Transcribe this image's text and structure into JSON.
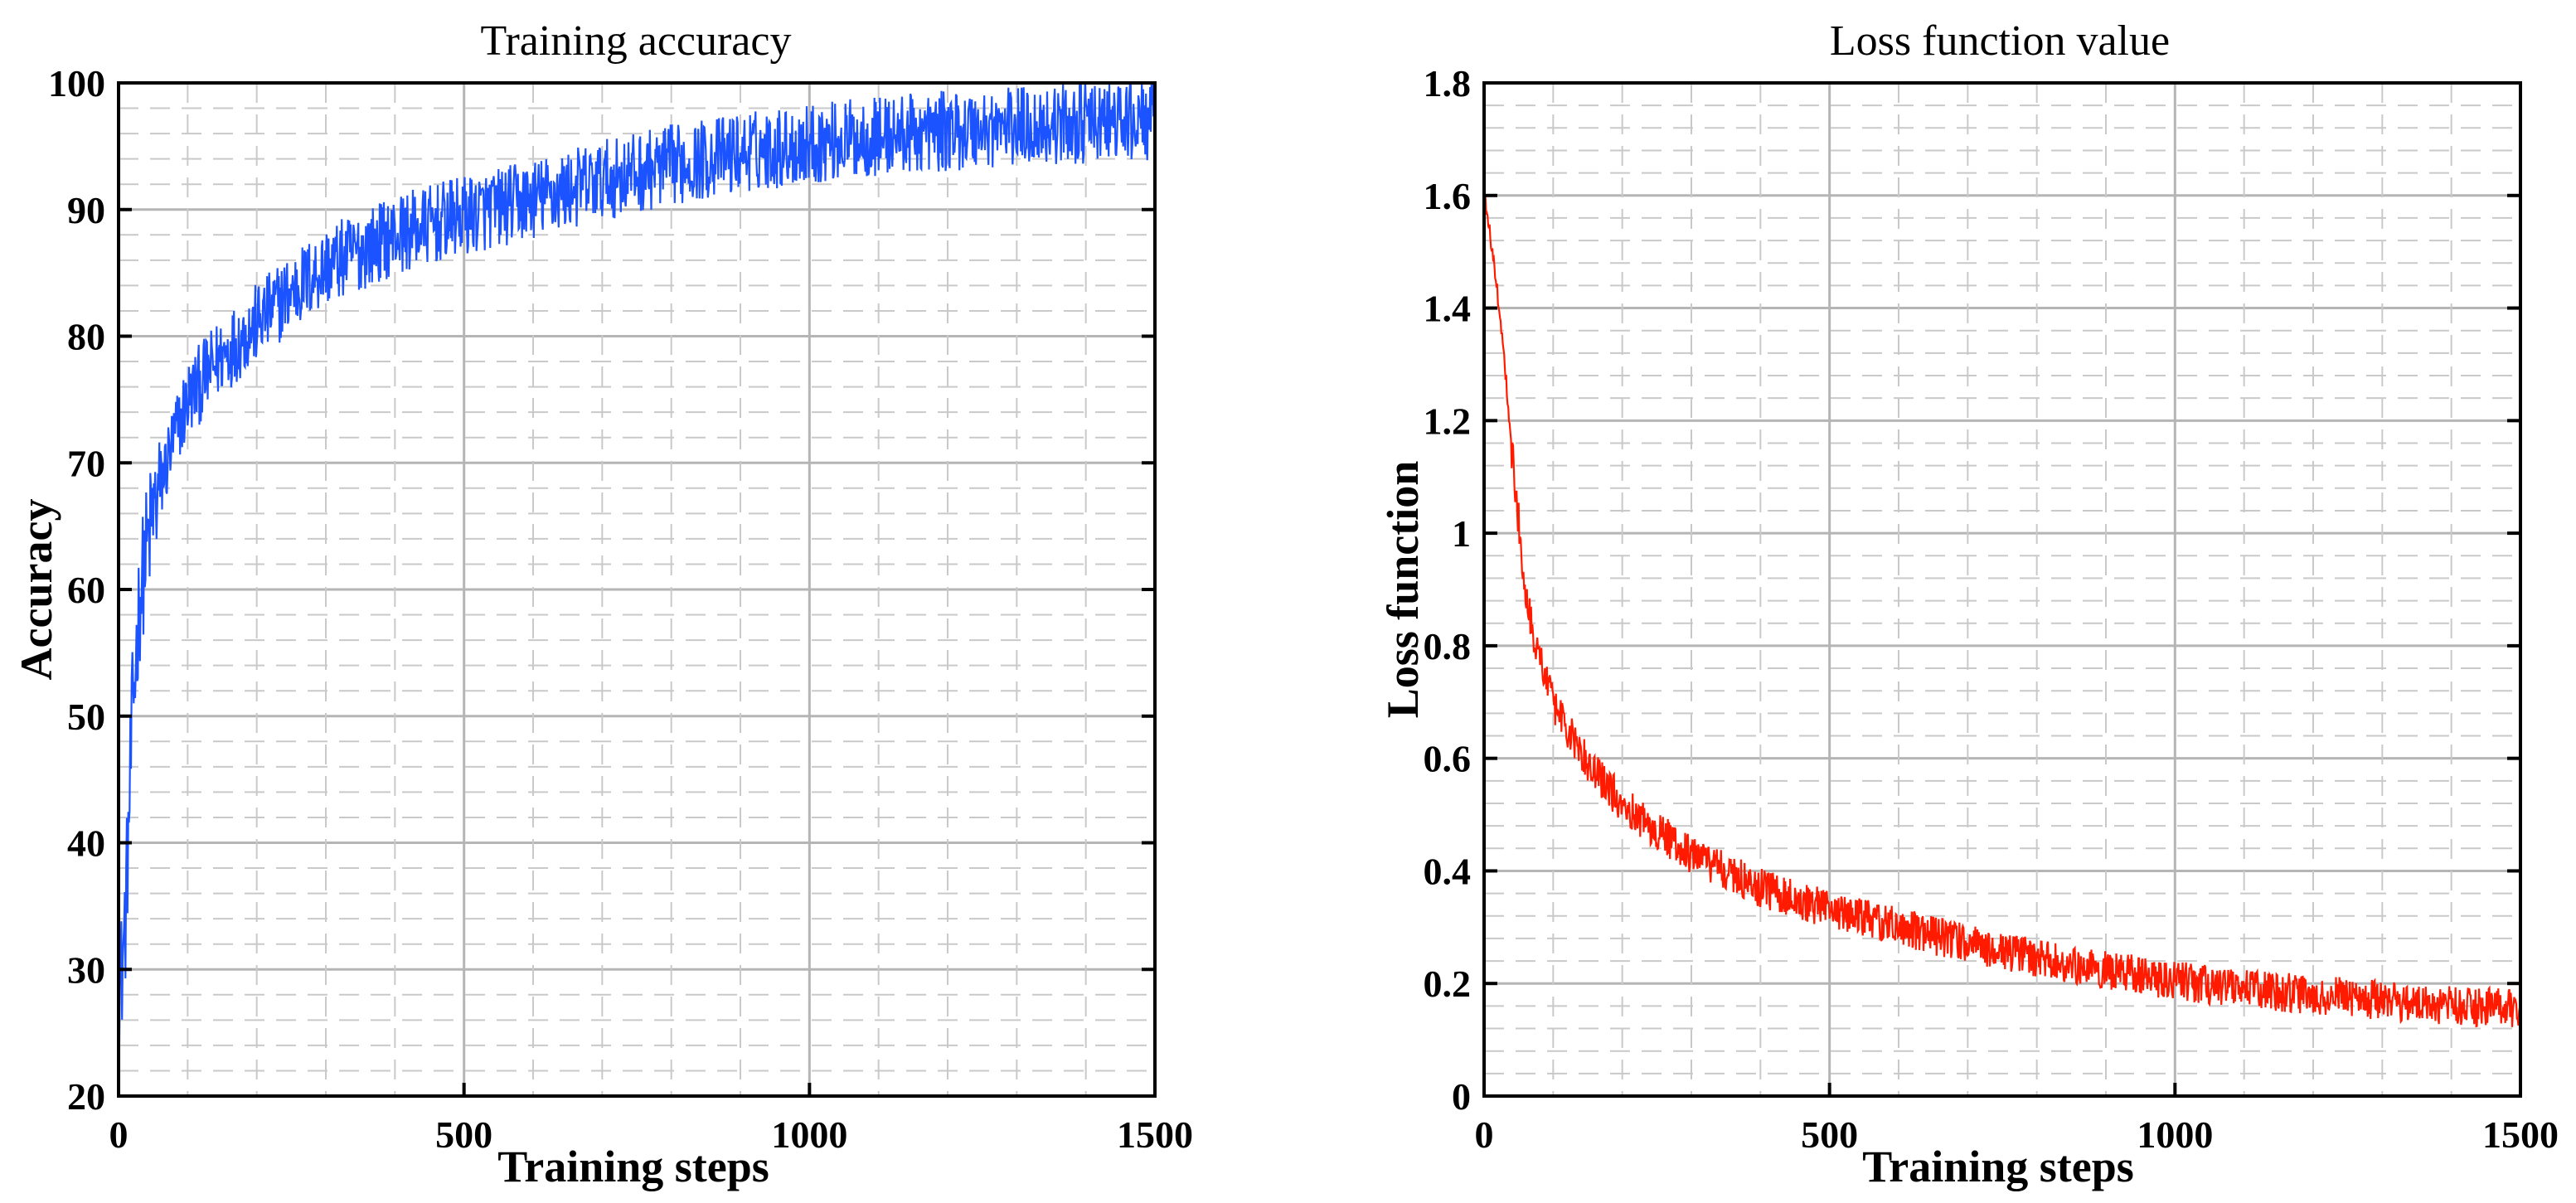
{
  "chart_data": [
    {
      "type": "line",
      "title": "Training accuracy",
      "xlabel": "Training steps",
      "ylabel": "Accuracy",
      "xlim": [
        0,
        1500
      ],
      "ylim": [
        20,
        100
      ],
      "xticks": [
        0,
        500,
        1000,
        1500
      ],
      "yticks": [
        20,
        30,
        40,
        50,
        60,
        70,
        80,
        90,
        100
      ],
      "xtick_labels": [
        "0",
        "500",
        "1000",
        "1500"
      ],
      "ytick_labels": [
        "20",
        "30",
        "40",
        "50",
        "60",
        "70",
        "80",
        "90",
        "100"
      ],
      "grid": true,
      "series": [
        {
          "name": "Accuracy",
          "color": "#1a53ff",
          "x": [
            0,
            5,
            10,
            15,
            20,
            30,
            40,
            50,
            75,
            100,
            150,
            200,
            250,
            300,
            400,
            500,
            600,
            700,
            800,
            900,
            1000,
            1100,
            1200,
            1300,
            1400,
            1500
          ],
          "y": [
            28,
            30,
            34,
            42,
            50,
            59,
            63,
            66,
            71,
            75,
            78.5,
            81,
            83.5,
            85.5,
            88,
            89.5,
            90.8,
            92.3,
            93.5,
            94.5,
            95.2,
            95.8,
            96.2,
            96.6,
            96.8,
            97
          ],
          "noise_amplitude": 3.2
        }
      ]
    },
    {
      "type": "line",
      "title": "Loss function value",
      "xlabel": "Training steps",
      "ylabel": "Loss function",
      "xlim": [
        0,
        1500
      ],
      "ylim": [
        0,
        1.8
      ],
      "xticks": [
        0,
        500,
        1000,
        1500
      ],
      "yticks": [
        0,
        0.2,
        0.4,
        0.6,
        0.8,
        1,
        1.2,
        1.4,
        1.6,
        1.8
      ],
      "xtick_labels": [
        "0",
        "500",
        "1000",
        "1500"
      ],
      "ytick_labels": [
        "0",
        "0.2",
        "0.4",
        "0.6",
        "0.8",
        "1",
        "1.2",
        "1.4",
        "1.6",
        "1.8"
      ],
      "grid": true,
      "series": [
        {
          "name": "Loss",
          "color": "#ff1a00",
          "x": [
            0,
            10,
            20,
            30,
            40,
            50,
            60,
            75,
            100,
            125,
            150,
            200,
            250,
            300,
            400,
            500,
            600,
            700,
            800,
            900,
            1000,
            1100,
            1200,
            1300,
            1400,
            1500
          ],
          "y": [
            1.6,
            1.52,
            1.42,
            1.3,
            1.15,
            1.02,
            0.9,
            0.8,
            0.7,
            0.64,
            0.59,
            0.52,
            0.47,
            0.43,
            0.37,
            0.33,
            0.3,
            0.27,
            0.245,
            0.225,
            0.205,
            0.19,
            0.18,
            0.17,
            0.16,
            0.155
          ],
          "noise_amplitude": 0.035
        }
      ]
    }
  ]
}
